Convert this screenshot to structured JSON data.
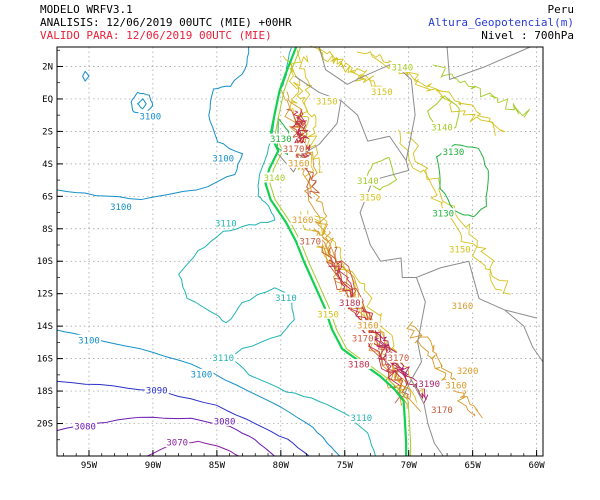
{
  "header": {
    "model": "MODELO WRFV3.1",
    "analysis": "ANALISIS: 12/06/2019 00UTC (MIE) +00HR",
    "valid": "VALIDO PARA: 12/06/2019 00UTC (MIE)",
    "region": "Peru",
    "variable": "Altura_Geopotencial(m)",
    "level": "Nivel : 700hPa"
  },
  "colors": {
    "frame": "#000000",
    "grid": "#9a9a9a",
    "border": "#8c8c8c",
    "c3070": "#8a1fa0",
    "c3080": "#6a1ab0",
    "c3090": "#2b30c8",
    "c3100": "#1590c8",
    "c3110": "#22b4b4",
    "c3130": "#1fb33c",
    "c3140": "#a4cc2a",
    "c3150": "#d6c21e",
    "c3160": "#d99a2a",
    "c3170": "#c85a3a",
    "c3180": "#c0304a",
    "c3190": "#b0206a",
    "coast": "#12d050"
  },
  "axes": {
    "x_labels": [
      "95W",
      "90W",
      "85W",
      "80W",
      "75W",
      "70W",
      "65W",
      "60W"
    ],
    "y_labels": [
      "2N",
      "EQ",
      "2S",
      "4S",
      "6S",
      "8S",
      "10S",
      "12S",
      "14S",
      "16S",
      "18S",
      "20S"
    ]
  },
  "contour_labels": [
    {
      "text": "3100",
      "color": "c3100",
      "lon": -90.2,
      "lat": -1.1
    },
    {
      "text": "3100",
      "color": "c3100",
      "lon": -84.5,
      "lat": -3.7
    },
    {
      "text": "3100",
      "color": "c3100",
      "lon": -92.5,
      "lat": -6.7
    },
    {
      "text": "3100",
      "color": "c3100",
      "lon": -95.0,
      "lat": -14.9
    },
    {
      "text": "3100",
      "color": "c3100",
      "lon": -86.2,
      "lat": -17.0
    },
    {
      "text": "3110",
      "color": "c3110",
      "lon": -84.3,
      "lat": -7.7
    },
    {
      "text": "3110",
      "color": "c3110",
      "lon": -79.6,
      "lat": -12.3
    },
    {
      "text": "3110",
      "color": "c3110",
      "lon": -84.5,
      "lat": -16.0
    },
    {
      "text": "3110",
      "color": "c3110",
      "lon": -73.7,
      "lat": -19.7
    },
    {
      "text": "3090",
      "color": "c3090",
      "lon": -89.7,
      "lat": -18.0
    },
    {
      "text": "3080",
      "color": "c3080",
      "lon": -84.4,
      "lat": -19.9
    },
    {
      "text": "3080",
      "color": "c3080",
      "lon": -95.3,
      "lat": -20.2
    },
    {
      "text": "3070",
      "color": "c3070",
      "lon": -88.1,
      "lat": -21.2
    },
    {
      "text": "3130",
      "color": "c3130",
      "lon": -80.0,
      "lat": -2.5
    },
    {
      "text": "3130",
      "color": "c3130",
      "lon": -66.5,
      "lat": -3.3
    },
    {
      "text": "3130",
      "color": "c3130",
      "lon": -67.3,
      "lat": -7.1
    },
    {
      "text": "3140",
      "color": "c3140",
      "lon": -70.5,
      "lat": 1.9
    },
    {
      "text": "3140",
      "color": "c3140",
      "lon": -67.4,
      "lat": -1.8
    },
    {
      "text": "3140",
      "color": "c3140",
      "lon": -73.2,
      "lat": -5.1
    },
    {
      "text": "3140",
      "color": "c3140",
      "lon": -80.5,
      "lat": -4.9
    },
    {
      "text": "3150",
      "color": "c3150",
      "lon": -76.4,
      "lat": -0.2
    },
    {
      "text": "3150",
      "color": "c3150",
      "lon": -72.1,
      "lat": 0.4
    },
    {
      "text": "3150",
      "color": "c3150",
      "lon": -73.0,
      "lat": -6.1
    },
    {
      "text": "3150",
      "color": "c3150",
      "lon": -66.0,
      "lat": -9.3
    },
    {
      "text": "3150",
      "color": "c3150",
      "lon": -76.3,
      "lat": -13.3
    },
    {
      "text": "3160",
      "color": "c3160",
      "lon": -78.6,
      "lat": -4.0
    },
    {
      "text": "3160",
      "color": "c3160",
      "lon": -78.3,
      "lat": -7.5
    },
    {
      "text": "3160",
      "color": "c3160",
      "lon": -73.2,
      "lat": -14.0
    },
    {
      "text": "3160",
      "color": "c3160",
      "lon": -65.8,
      "lat": -12.8
    },
    {
      "text": "3160",
      "color": "c3160",
      "lon": -66.3,
      "lat": -17.7
    },
    {
      "text": "3170",
      "color": "c3170",
      "lon": -79.0,
      "lat": -3.1
    },
    {
      "text": "3170",
      "color": "c3170",
      "lon": -77.7,
      "lat": -8.8
    },
    {
      "text": "3170",
      "color": "c3170",
      "lon": -73.6,
      "lat": -14.8
    },
    {
      "text": "3170",
      "color": "c3170",
      "lon": -70.8,
      "lat": -16.0
    },
    {
      "text": "3170",
      "color": "c3170",
      "lon": -67.4,
      "lat": -19.2
    },
    {
      "text": "3180",
      "color": "c3180",
      "lon": -74.6,
      "lat": -12.6
    },
    {
      "text": "3180",
      "color": "c3180",
      "lon": -73.9,
      "lat": -16.4
    },
    {
      "text": "3190",
      "color": "c3190",
      "lon": -68.4,
      "lat": -17.6
    },
    {
      "text": "3200",
      "color": "c3160",
      "lon": -65.4,
      "lat": -16.8
    }
  ]
}
